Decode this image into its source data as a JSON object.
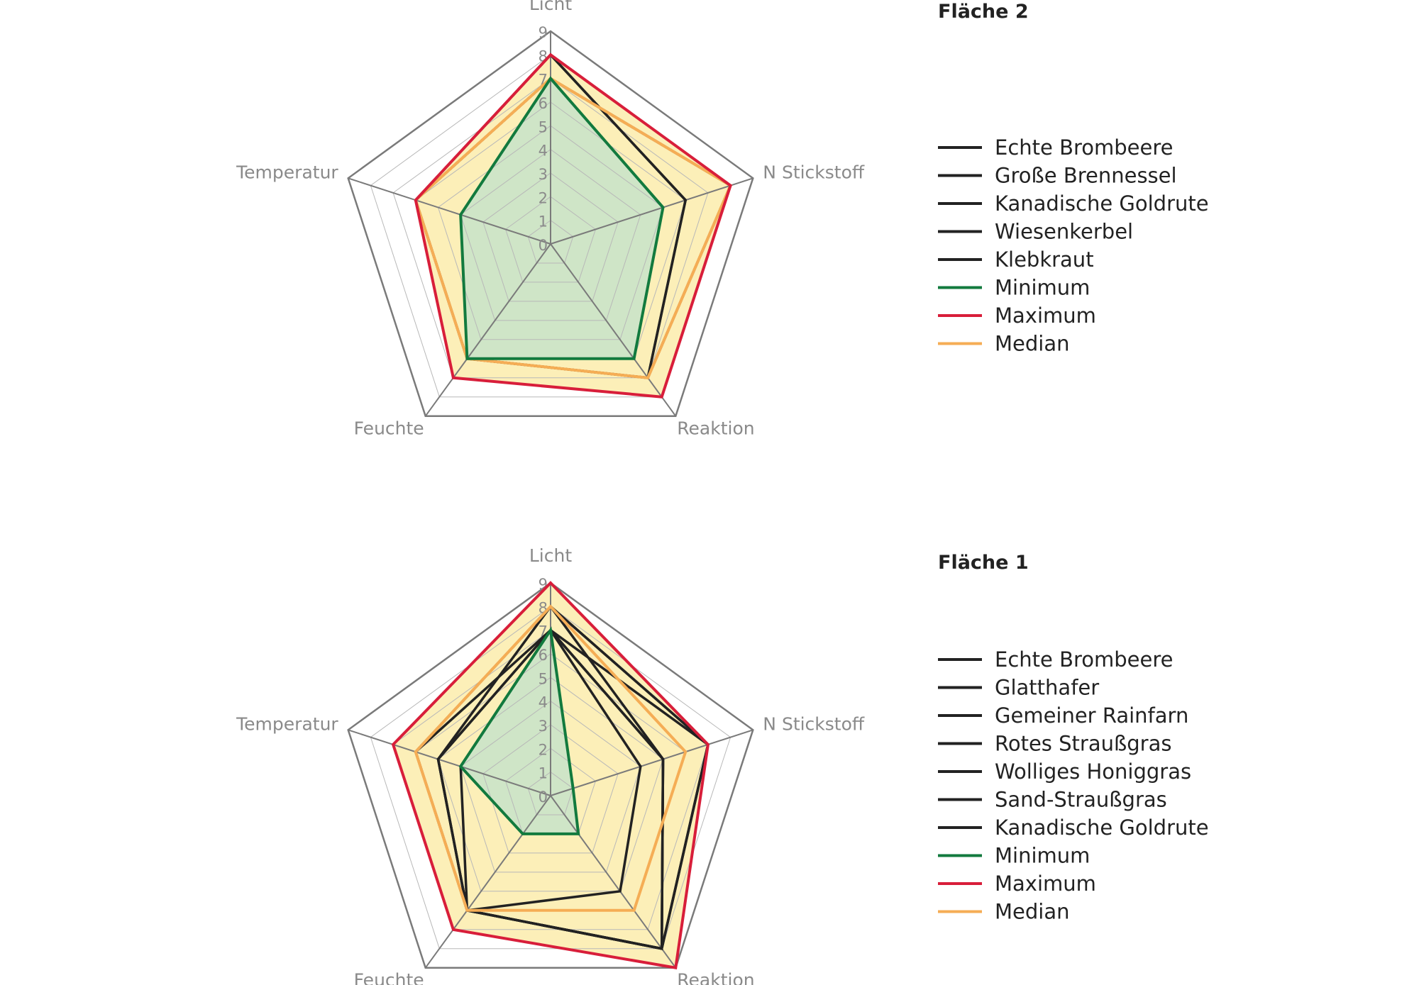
{
  "colors": {
    "species": "#222222",
    "minimum": "#127a3e",
    "maximum": "#d81e3a",
    "median": "#f5ad55",
    "band_outer": "#fcefb8",
    "band_inner": "#cfe5c7",
    "grid": "#b8b8b8",
    "frame": "#7a7a7a"
  },
  "chart_data": [
    {
      "type": "radar",
      "title": "Fläche 2",
      "axes": [
        "Licht",
        "N Stickstoff",
        "Reaktion",
        "Feuchte",
        "Temperatur"
      ],
      "ticks": [
        "0",
        "1",
        "2",
        "3",
        "4",
        "5",
        "6",
        "7",
        "8",
        "9"
      ],
      "range": [
        0,
        9
      ],
      "series": [
        {
          "name": "Echte Brombeere",
          "values": [
            8,
            6,
            7,
            6,
            6
          ],
          "role": "species"
        },
        {
          "name": "Große Brennessel",
          "values": [
            7,
            8,
            7,
            6,
            6
          ],
          "role": "species"
        },
        {
          "name": "Kanadische Goldrute",
          "values": [
            8,
            6,
            7,
            6,
            6
          ],
          "role": "species"
        },
        {
          "name": "Wiesenkerbel",
          "values": [
            7,
            8,
            7,
            6,
            6
          ],
          "role": "species"
        },
        {
          "name": "Klebkraut",
          "values": [
            7,
            8,
            7,
            6,
            6
          ],
          "role": "species"
        },
        {
          "name": "Minimum",
          "values": [
            7,
            5,
            6,
            6,
            4
          ],
          "role": "minimum"
        },
        {
          "name": "Maximum",
          "values": [
            8,
            8,
            8,
            7,
            6
          ],
          "role": "maximum"
        },
        {
          "name": "Median",
          "values": [
            7,
            8,
            7,
            6,
            6
          ],
          "role": "median"
        }
      ]
    },
    {
      "type": "radar",
      "title": "Fläche 1",
      "axes": [
        "Licht",
        "N Stickstoff",
        "Reaktion",
        "Feuchte",
        "Temperatur"
      ],
      "ticks": [
        "0",
        "1",
        "2",
        "3",
        "4",
        "5",
        "6",
        "7",
        "8",
        "9"
      ],
      "range": [
        0,
        9
      ],
      "series": [
        {
          "name": "Echte Brombeere",
          "values": [
            7,
            4,
            5,
            6,
            4
          ],
          "role": "species"
        },
        {
          "name": "Glatthafer",
          "values": [
            8,
            7,
            8,
            6,
            5
          ],
          "role": "species"
        },
        {
          "name": "Gemeiner Rainfarn",
          "values": [
            8,
            5,
            8,
            6,
            6
          ],
          "role": "species"
        },
        {
          "name": "Rotes Straußgras",
          "values": [
            7,
            5,
            8,
            6,
            5
          ],
          "role": "species"
        },
        {
          "name": "Wolliges Honiggras",
          "values": [
            7,
            7,
            8,
            6,
            6
          ],
          "role": "species"
        },
        {
          "name": "Sand-Straußgras",
          "values": [
            7,
            5,
            8,
            6,
            5
          ],
          "role": "species"
        },
        {
          "name": "Kanadische Goldrute",
          "values": [
            8,
            7,
            8,
            6,
            6
          ],
          "role": "species"
        },
        {
          "name": "Minimum",
          "values": [
            7,
            1,
            2,
            2,
            4
          ],
          "role": "minimum"
        },
        {
          "name": "Maximum",
          "values": [
            9,
            7,
            9,
            7,
            7
          ],
          "role": "maximum"
        },
        {
          "name": "Median",
          "values": [
            8,
            6,
            6,
            6,
            6
          ],
          "role": "median"
        }
      ]
    }
  ]
}
